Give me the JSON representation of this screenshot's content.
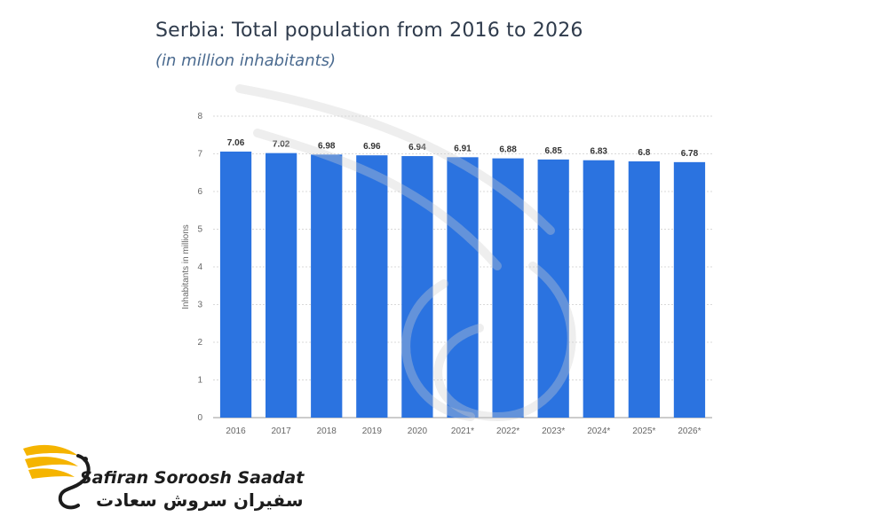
{
  "header": {
    "title": "Serbia: Total population from 2016 to 2026",
    "subtitle": "(in million inhabitants)"
  },
  "logo": {
    "latin": "Safiran Soroosh Saadat",
    "farsi": "سفیران سروش سعادت"
  },
  "colors": {
    "bar": "#2b73e0",
    "grid": "#d9d9d9",
    "axis_text": "#666666",
    "label_text": "#333333"
  },
  "chart_data": {
    "type": "bar",
    "title": "Serbia: Total population from 2016 to 2026",
    "subtitle": "(in million inhabitants)",
    "xlabel": "",
    "ylabel": "Inhabitants in millions",
    "ylim": [
      0,
      8
    ],
    "yticks": [
      0,
      1,
      2,
      3,
      4,
      5,
      6,
      7,
      8
    ],
    "grid": true,
    "categories": [
      "2016",
      "2017",
      "2018",
      "2019",
      "2020",
      "2021*",
      "2022*",
      "2023*",
      "2024*",
      "2025*",
      "2026*"
    ],
    "values": [
      7.06,
      7.02,
      6.98,
      6.96,
      6.94,
      6.91,
      6.88,
      6.85,
      6.83,
      6.8,
      6.78
    ]
  }
}
